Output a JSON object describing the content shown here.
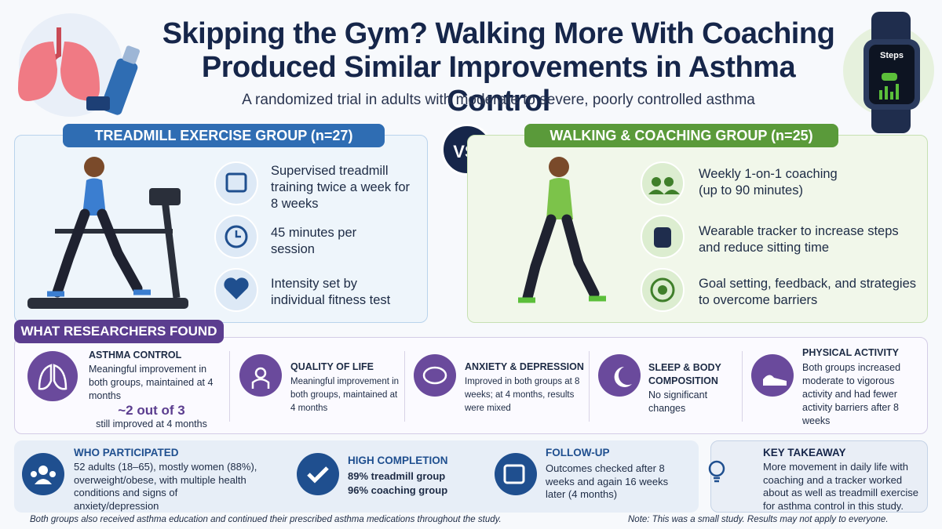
{
  "header": {
    "title_lines": [
      "Skipping the Gym? Walking More With Coaching",
      "Produced Similar Improvements in Asthma Control"
    ],
    "subtitle": "A randomized trial in adults with moderate to severe, poorly controlled asthma",
    "watch_label": "Steps"
  },
  "treadmill": {
    "label": "TREADMILL EXERCISE GROUP (n=27)",
    "items": [
      "Supervised treadmill training twice a week for 8 weeks",
      "45 minutes per session",
      "Intensity set by individual fitness test"
    ]
  },
  "versus": "VS.",
  "walking": {
    "label": "WALKING & COACHING GROUP (n=25)",
    "items": [
      "Weekly 1-on-1 coaching (up to 90 minutes)",
      "Wearable tracker to increase steps and reduce sitting time",
      "Goal setting, feedback, and strategies to overcome barriers"
    ]
  },
  "findings": {
    "label": "WHAT RESEARCHERS FOUND",
    "cards": [
      {
        "title": "ASTHMA CONTROL",
        "text": "Meaningful improvement in both groups, maintained at 4 months",
        "highlight": "~2 out of 3",
        "highlight_note": "still improved at 4 months"
      },
      {
        "title": "QUALITY OF LIFE",
        "text": "Meaningful improvement in both groups, maintained at 4 months"
      },
      {
        "title": "ANXIETY & DEPRESSION",
        "text": "Improved in both groups at 8 weeks; at 4 months, results were mixed"
      },
      {
        "title": "SLEEP & BODY COMPOSITION",
        "text": "No significant changes"
      },
      {
        "title": "PHYSICAL ACTIVITY",
        "text": "Both groups increased moderate to vigorous activity and had fewer activity barriers after 8 weeks"
      }
    ]
  },
  "details": [
    {
      "title": "WHO PARTICIPATED",
      "text": "52 adults (18–65), mostly women (88%), overweight/obese, with multiple health conditions and signs of anxiety/depression"
    },
    {
      "title": "HIGH COMPLETION",
      "lines": [
        "89% treadmill group",
        "96% coaching group"
      ]
    },
    {
      "title": "FOLLOW-UP",
      "text": "Outcomes checked after 8 weeks and again 16 weeks later (4 months)"
    },
    {
      "title": "KEY TAKEAWAY",
      "text": "More movement in daily life with coaching and a tracker worked about as well as treadmill exercise for asthma control in this study."
    }
  ],
  "footnotes": [
    "Both groups also received asthma education and continued their prescribed asthma medications throughout the study.",
    "Note: This was a small study. Results may not apply to everyone."
  ]
}
